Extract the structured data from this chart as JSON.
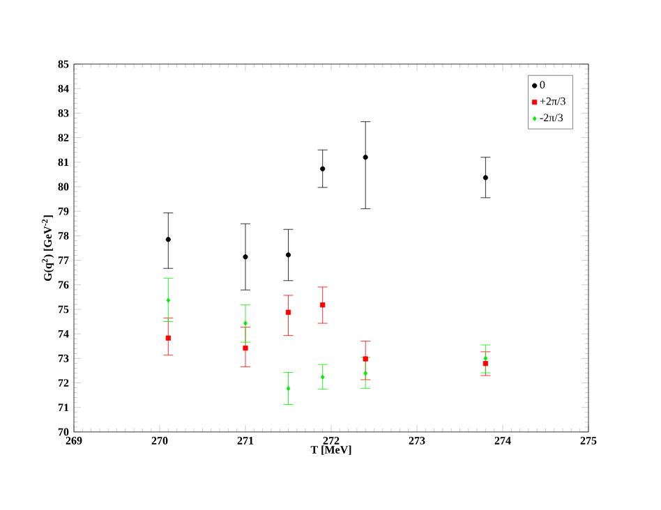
{
  "chart_data": {
    "type": "scatter",
    "xlabel": "T [MeV]",
    "ylabel": "G(q$^{2}$) [GeV$^{-2}$]",
    "x": [
      270.1,
      271,
      271.5,
      271.9,
      272.4,
      273.8
    ],
    "series": [
      {
        "name": "0",
        "color": "#000000",
        "marker": "circle",
        "values": [
          77.85,
          77.14,
          77.22,
          80.73,
          81.2,
          80.37
        ],
        "errors": [
          [
            76.67,
            78.93
          ],
          [
            75.79,
            78.49
          ],
          [
            76.17,
            78.26
          ],
          [
            79.97,
            81.5
          ],
          [
            79.1,
            82.65
          ],
          [
            79.55,
            81.2
          ]
        ]
      },
      {
        "name": "+2π/3",
        "color": "#ff0000",
        "marker": "square",
        "values": [
          73.83,
          73.42,
          74.88,
          75.18,
          72.98,
          72.79
        ],
        "errors": [
          [
            73.13,
            74.65
          ],
          [
            72.66,
            74.27
          ],
          [
            73.93,
            75.57
          ],
          [
            74.43,
            75.91
          ],
          [
            72.13,
            73.7
          ],
          [
            72.3,
            73.27
          ]
        ]
      },
      {
        "name": "-2π/3",
        "color": "#00ee00",
        "marker": "diamond",
        "values": [
          75.37,
          74.43,
          71.77,
          72.24,
          72.39,
          73.0
        ],
        "errors": [
          [
            74.5,
            76.27
          ],
          [
            73.66,
            75.18
          ],
          [
            71.12,
            72.43
          ],
          [
            71.75,
            72.75
          ],
          [
            71.78,
            73.04
          ],
          [
            72.41,
            73.55
          ]
        ]
      }
    ],
    "xlim": [
      269,
      275
    ],
    "xticks": [
      269,
      270,
      271,
      272,
      273,
      274,
      275
    ],
    "ylim": [
      70,
      85
    ],
    "yticks": [
      70,
      71,
      72,
      73,
      74,
      75,
      76,
      77,
      78,
      79,
      80,
      81,
      82,
      83,
      84,
      85
    ],
    "grid": false,
    "legend": "top right"
  }
}
